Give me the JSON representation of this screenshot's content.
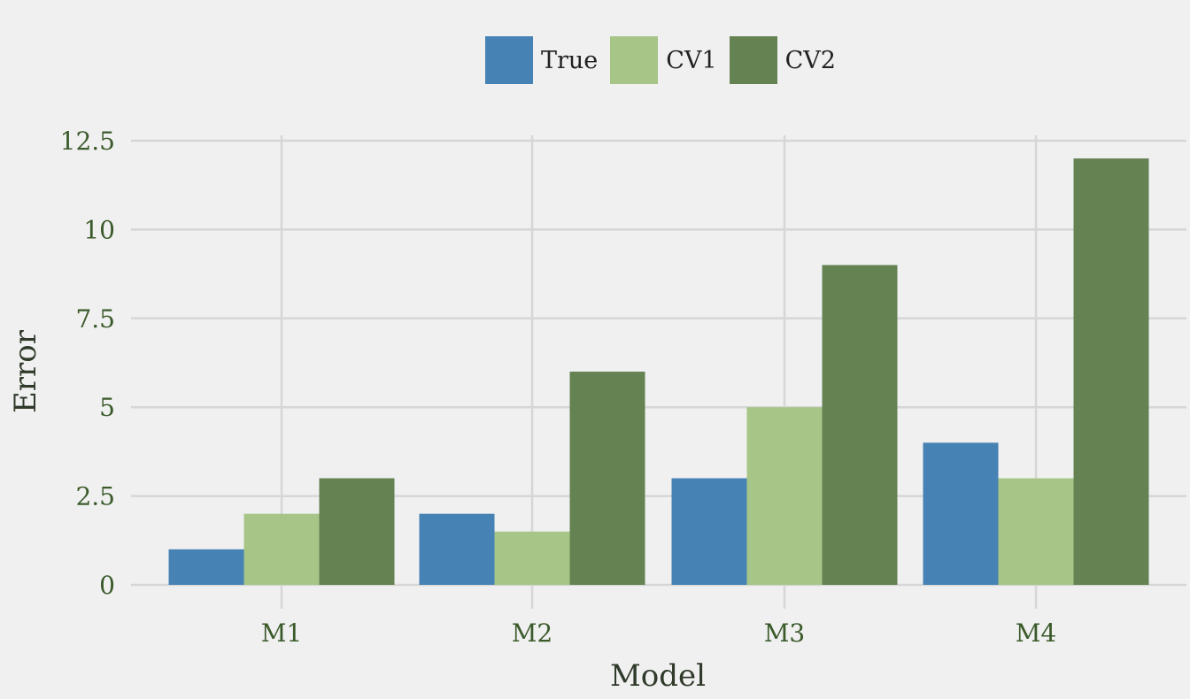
{
  "chart_data": {
    "type": "bar",
    "categories": [
      "M1",
      "M2",
      "M3",
      "M4"
    ],
    "series": [
      {
        "name": "True",
        "color": "#4682b4",
        "values": [
          1,
          2,
          3,
          4
        ]
      },
      {
        "name": "CV1",
        "color": "#a6c587",
        "values": [
          2,
          1.5,
          5,
          3
        ]
      },
      {
        "name": "CV2",
        "color": "#658253",
        "values": [
          3,
          6,
          9,
          12
        ]
      }
    ],
    "title": "",
    "xlabel": "Model",
    "ylabel": "Error",
    "ylim": [
      0,
      12.5
    ],
    "yticks": [
      "0",
      "2.5",
      "5",
      "7.5",
      "10",
      "12.5"
    ],
    "grid": true,
    "legend_position": "top-center"
  }
}
